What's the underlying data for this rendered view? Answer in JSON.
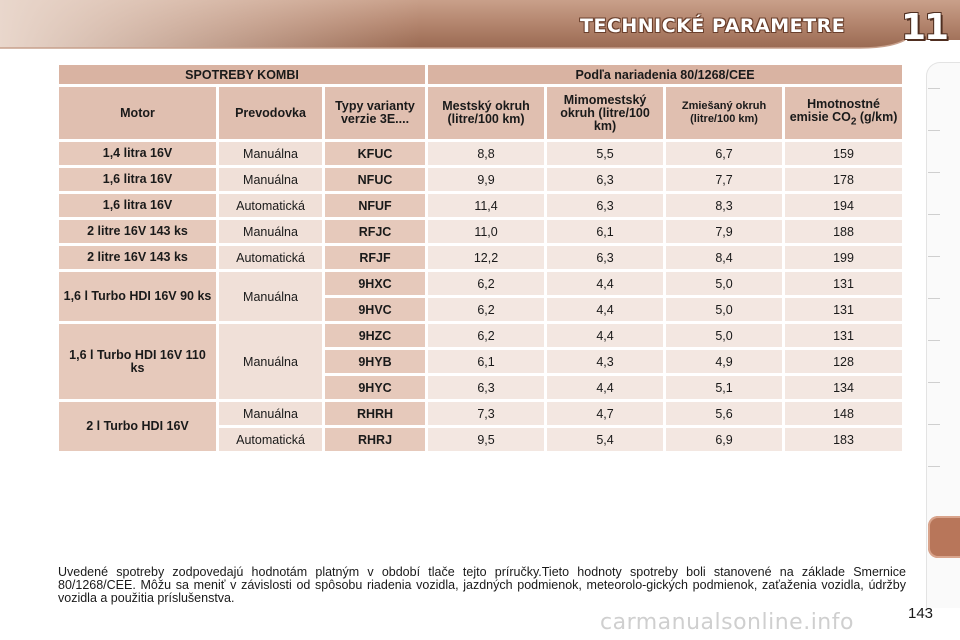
{
  "header": {
    "title": "TECHNICKÉ PARAMETRE",
    "chapter": "11"
  },
  "table": {
    "group_left": "SPOTREBY KOMBI",
    "group_right": "Podľa nariadenia 80/1268/CEE",
    "columns": {
      "motor": "Motor",
      "gearbox": "Prevodovka",
      "types": "Typy varianty verzie 3E....",
      "urban": "Mestský okruh (litre/100 km)",
      "extra_urban": "Mimomestský okruh (litre/100 km)",
      "combined": "Zmiešaný okruh (litre/100 km)",
      "co2_prefix": "Hmotnostné emisie CO",
      "co2_sub": "2",
      "co2_suffix": " (g/km)"
    },
    "groups": [
      {
        "motor": "1,4 litra 16V",
        "rows": [
          {
            "gearbox": "Manuálna",
            "type": "KFUC",
            "urban": "8,8",
            "extra": "5,5",
            "mixed": "6,7",
            "co2": "159"
          }
        ]
      },
      {
        "motor": "1,6 litra 16V",
        "rows": [
          {
            "gearbox": "Manuálna",
            "type": "NFUC",
            "urban": "9,9",
            "extra": "6,3",
            "mixed": "7,7",
            "co2": "178"
          }
        ]
      },
      {
        "motor": "1,6 litra 16V",
        "rows": [
          {
            "gearbox": "Automatická",
            "type": "NFUF",
            "urban": "11,4",
            "extra": "6,3",
            "mixed": "8,3",
            "co2": "194"
          }
        ]
      },
      {
        "motor": "2 litre 16V 143 ks",
        "rows": [
          {
            "gearbox": "Manuálna",
            "type": "RFJC",
            "urban": "11,0",
            "extra": "6,1",
            "mixed": "7,9",
            "co2": "188"
          }
        ]
      },
      {
        "motor": "2 litre 16V 143 ks",
        "rows": [
          {
            "gearbox": "Automatická",
            "type": "RFJF",
            "urban": "12,2",
            "extra": "6,3",
            "mixed": "8,4",
            "co2": "199"
          }
        ]
      },
      {
        "motor": "1,6 l Turbo HDI 16V 90 ks",
        "gearbox": "Manuálna",
        "rows": [
          {
            "type": "9HXC",
            "urban": "6,2",
            "extra": "4,4",
            "mixed": "5,0",
            "co2": "131"
          },
          {
            "type": "9HVC",
            "urban": "6,2",
            "extra": "4,4",
            "mixed": "5,0",
            "co2": "131"
          }
        ]
      },
      {
        "motor": "1,6 l Turbo HDI 16V 110 ks",
        "gearbox": "Manuálna",
        "rows": [
          {
            "type": "9HZC",
            "urban": "6,2",
            "extra": "4,4",
            "mixed": "5,0",
            "co2": "131"
          },
          {
            "type": "9HYB",
            "urban": "6,1",
            "extra": "4,3",
            "mixed": "4,9",
            "co2": "128"
          },
          {
            "type": "9HYC",
            "urban": "6,3",
            "extra": "4,4",
            "mixed": "5,1",
            "co2": "134"
          }
        ]
      },
      {
        "motor": "2 l Turbo HDI 16V",
        "rows": [
          {
            "gearbox": "Manuálna",
            "type": "RHRH",
            "urban": "7,3",
            "extra": "4,7",
            "mixed": "5,6",
            "co2": "148"
          },
          {
            "gearbox": "Automatická",
            "type": "RHRJ",
            "urban": "9,5",
            "extra": "5,4",
            "mixed": "6,9",
            "co2": "183"
          }
        ]
      }
    ]
  },
  "footnote": "Uvedené spotreby zodpovedajú hodnotám platným v období tlače tejto príručky.Tieto hodnoty spotreby boli stanovené na základe Smernice 80/1268/CEE. Môžu sa meniť v závislosti od spôsobu riadenia vozidla, jazdných podmienok, meteorolo-gických podmienok, zaťaženia vozidla, údržby vozidla a použitia príslušenstva.",
  "page_number": "143",
  "watermark": "carmanualsonline.info",
  "colors": {
    "accent": "#b8765a",
    "header": "#b58770",
    "cell_dark": "#e6c9bb",
    "cell_light": "#f3e7e1"
  }
}
